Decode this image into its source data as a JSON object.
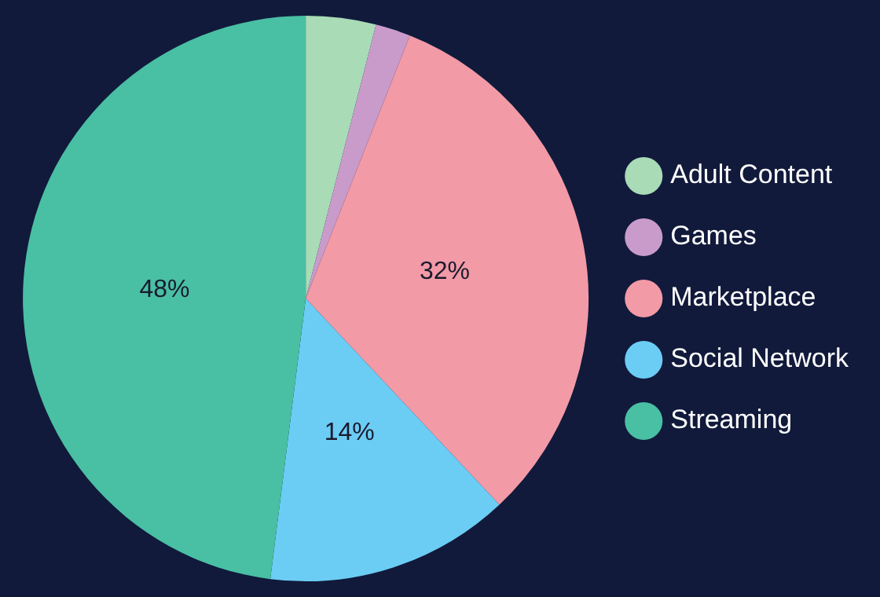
{
  "chart_data": {
    "type": "pie",
    "categories": [
      "Adult Content",
      "Games",
      "Marketplace",
      "Social Network",
      "Streaming"
    ],
    "values": [
      4,
      2,
      32,
      14,
      48
    ],
    "colors": [
      "#a8dbb6",
      "#c99bcb",
      "#f29aa6",
      "#6ccdf4",
      "#49bfa4"
    ],
    "value_labels": [
      null,
      null,
      "32%",
      "14%",
      "48%"
    ],
    "legend": "right"
  }
}
